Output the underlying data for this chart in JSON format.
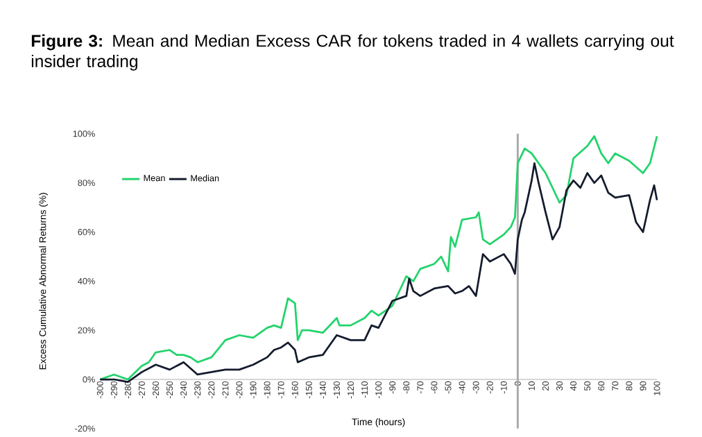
{
  "chart_data": {
    "type": "line",
    "title": "**Figure 3:** Mean and Median Excess CAR for tokens traded in 4 wallets carrying out insider trading",
    "xlabel": "Time (hours)",
    "ylabel": "Excess Cumulative Abnormal Returns (%)",
    "xlim": [
      -300,
      100
    ],
    "ylim": [
      -20,
      100
    ],
    "xticks": [
      -300,
      -290,
      -280,
      -270,
      -260,
      -250,
      -240,
      -230,
      -220,
      -210,
      -200,
      -190,
      -180,
      -170,
      -160,
      -150,
      -140,
      -130,
      -120,
      -110,
      -100,
      -90,
      -80,
      -70,
      -60,
      -50,
      -40,
      -30,
      -20,
      -10,
      0,
      10,
      20,
      30,
      40,
      50,
      60,
      70,
      80,
      90,
      100
    ],
    "yticks": [
      {
        "value": -20,
        "label": "-20%"
      },
      {
        "value": 0,
        "label": "0%"
      },
      {
        "value": 20,
        "label": "20%"
      },
      {
        "value": 40,
        "label": "40%"
      },
      {
        "value": 60,
        "label": "60%"
      },
      {
        "value": 80,
        "label": "80%"
      },
      {
        "value": 100,
        "label": "100%"
      }
    ],
    "legend": "top left",
    "grid": false,
    "marker": "none",
    "line_style": "solid",
    "ref_lines": [
      {
        "axis": "x",
        "value": 0,
        "color": "#aaaaaa"
      }
    ],
    "series": [
      {
        "name": "Mean",
        "color": "#22d36b",
        "x": [
          -300,
          -290,
          -280,
          -270,
          -265,
          -260,
          -250,
          -245,
          -240,
          -235,
          -230,
          -220,
          -210,
          -200,
          -190,
          -180,
          -175,
          -170,
          -165,
          -160,
          -158,
          -155,
          -150,
          -140,
          -130,
          -128,
          -120,
          -110,
          -105,
          -100,
          -90,
          -80,
          -75,
          -70,
          -60,
          -55,
          -50,
          -48,
          -45,
          -40,
          -30,
          -28,
          -25,
          -20,
          -10,
          -5,
          -2,
          0,
          5,
          10,
          20,
          30,
          35,
          40,
          50,
          55,
          60,
          65,
          70,
          80,
          90,
          95,
          100
        ],
        "values": [
          0,
          2,
          0,
          5.5,
          7,
          11,
          12,
          10,
          10,
          9,
          7,
          9,
          16,
          18,
          17,
          21,
          22,
          21,
          33,
          31,
          16,
          20,
          20,
          19,
          25,
          22,
          22,
          25,
          28,
          26,
          30,
          42,
          40,
          45,
          47,
          50,
          44,
          58,
          54,
          65,
          66,
          68,
          57,
          55,
          59,
          62,
          66,
          88,
          94,
          92,
          84,
          72,
          75,
          90,
          95,
          99,
          92,
          88,
          92,
          89,
          84,
          88,
          99
        ]
      },
      {
        "name": "Median",
        "color": "#141b2d",
        "x": [
          -300,
          -290,
          -280,
          -270,
          -260,
          -250,
          -240,
          -230,
          -220,
          -210,
          -200,
          -190,
          -180,
          -175,
          -170,
          -165,
          -160,
          -158,
          -150,
          -140,
          -130,
          -120,
          -110,
          -105,
          -100,
          -90,
          -80,
          -78,
          -75,
          -70,
          -60,
          -50,
          -45,
          -40,
          -35,
          -30,
          -25,
          -20,
          -10,
          -5,
          -2,
          0,
          3,
          5,
          10,
          12,
          15,
          20,
          25,
          30,
          35,
          40,
          45,
          50,
          55,
          60,
          65,
          70,
          80,
          85,
          90,
          95,
          98,
          100
        ],
        "values": [
          0,
          0,
          -1,
          3,
          6,
          4,
          7,
          2,
          3,
          4,
          4,
          6,
          9,
          12,
          13,
          15,
          12,
          7,
          9,
          10,
          18,
          16,
          16,
          22,
          21,
          32,
          34,
          41,
          36,
          34,
          37,
          38,
          35,
          36,
          38,
          34,
          51,
          48,
          51,
          47,
          43,
          57,
          65,
          68,
          81,
          88,
          80,
          68,
          57,
          62,
          77,
          81,
          78,
          84,
          80,
          83,
          76,
          74,
          75,
          64,
          60,
          73,
          79,
          73
        ]
      }
    ]
  }
}
